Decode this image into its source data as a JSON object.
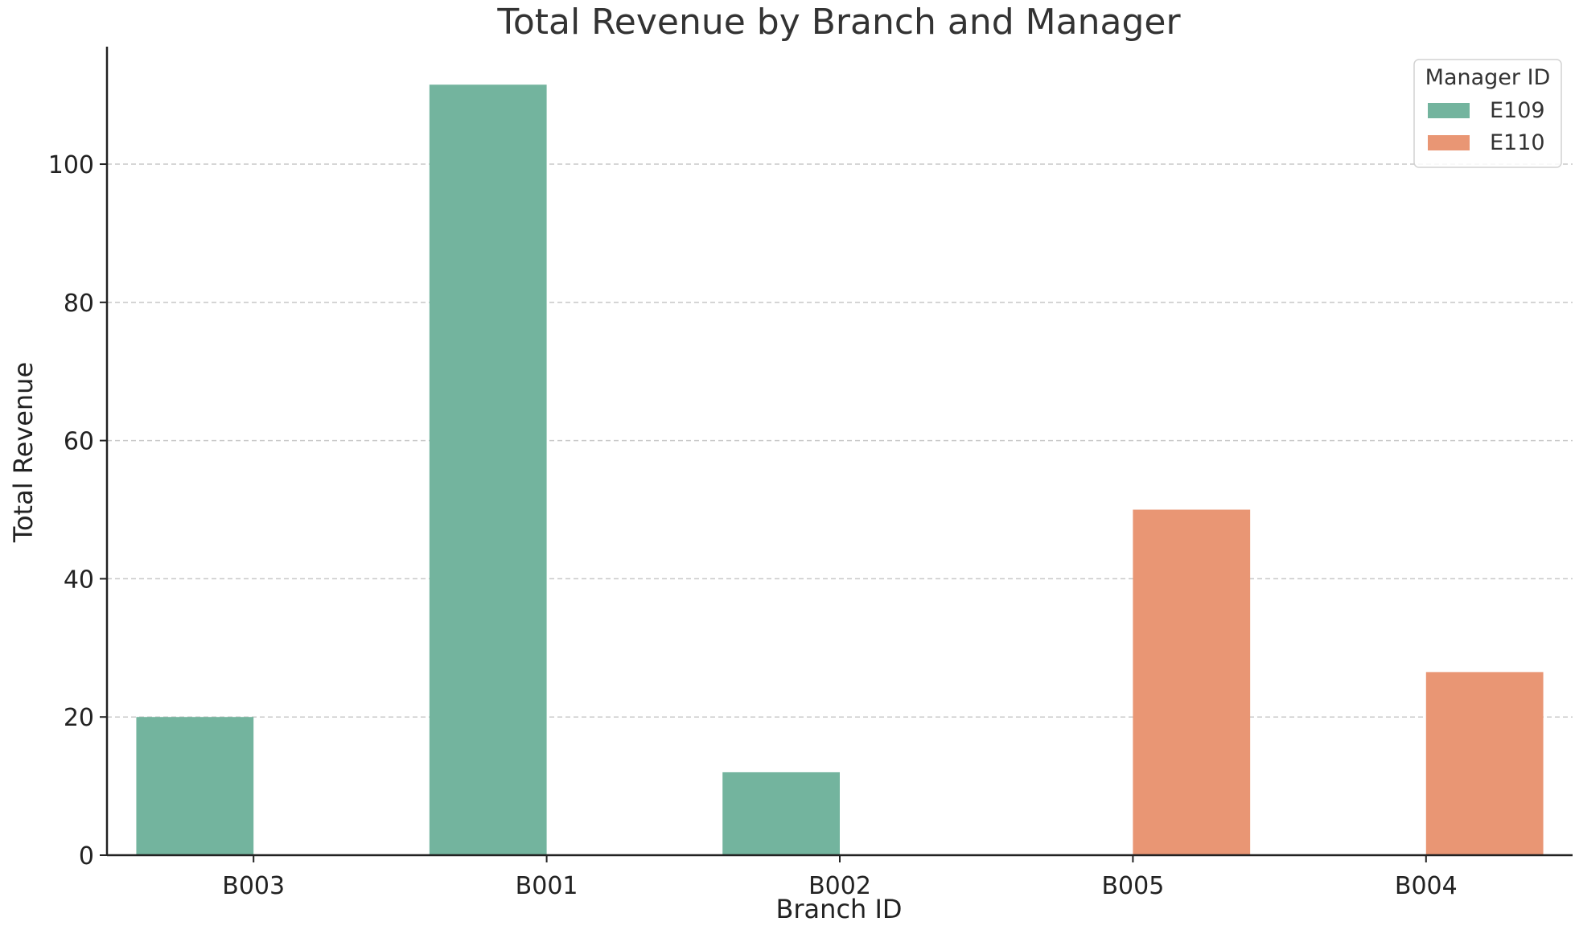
{
  "chart_data": {
    "type": "bar",
    "title": "Total Revenue by Branch and Manager",
    "xlabel": "Branch ID",
    "ylabel": "Total Revenue",
    "categories": [
      "B003",
      "B001",
      "B002",
      "B005",
      "B004"
    ],
    "series": [
      {
        "name": "E109",
        "color": "#73b49e",
        "values": [
          20,
          111.5,
          12,
          null,
          null
        ]
      },
      {
        "name": "E110",
        "color": "#e99674",
        "values": [
          null,
          null,
          null,
          50,
          26.5
        ]
      }
    ],
    "ylim": [
      0,
      117
    ],
    "yticks": [
      0,
      20,
      40,
      60,
      80,
      100
    ],
    "grid": "y-dashed",
    "legend": {
      "title": "Manager ID",
      "placement": "top-right"
    }
  }
}
